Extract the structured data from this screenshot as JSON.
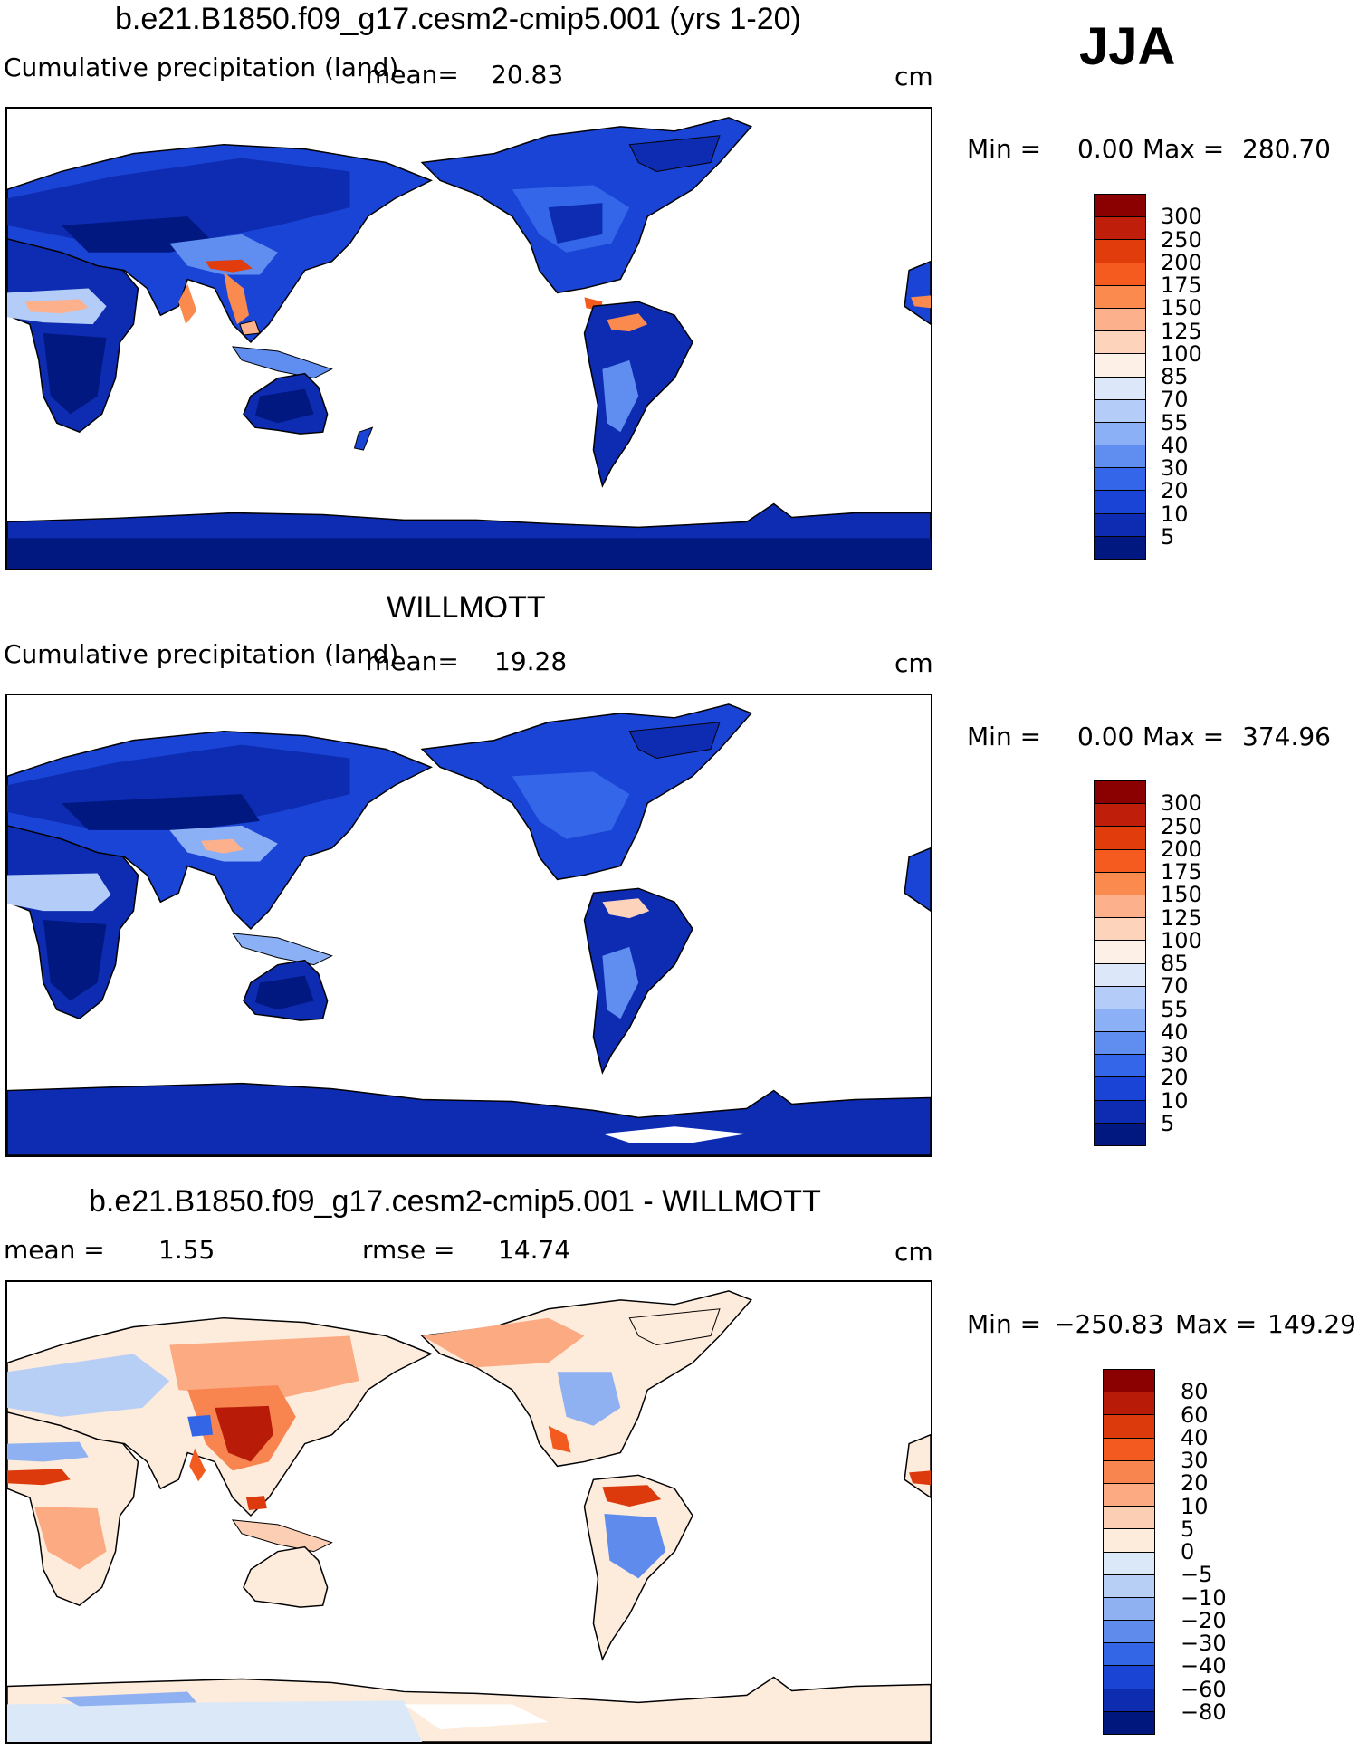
{
  "season": "JJA",
  "panels": [
    {
      "id": "model",
      "title": "b.e21.B1850.f09_g17.cesm2-cmip5.001 (yrs 1-20)",
      "variable": "Cumulative precipitation (land)",
      "mean_label": "mean=",
      "mean_value": "20.83",
      "units": "cm",
      "min_label": "Min =",
      "min_value": "0.00",
      "max_label": "Max =",
      "max_value": "280.70",
      "colorbar_labels": [
        "300",
        "250",
        "200",
        "175",
        "150",
        "125",
        "100",
        "85",
        "70",
        "55",
        "40",
        "30",
        "20",
        "10",
        "5"
      ],
      "colorbar_colors": [
        "#8b0000",
        "#be1e0a",
        "#e03c0c",
        "#f55a1e",
        "#fb8a4e",
        "#fdb08c",
        "#fdd3bc",
        "#fdf0e6",
        "#dce8fa",
        "#b4cdf8",
        "#8cb0f5",
        "#5f8df0",
        "#3366e8",
        "#1a44d6",
        "#0d2cb2",
        "#001880"
      ]
    },
    {
      "id": "obs",
      "title": "WILLMOTT",
      "variable": "Cumulative precipitation (land)",
      "mean_label": "mean=",
      "mean_value": "19.28",
      "units": "cm",
      "min_label": "Min =",
      "min_value": "0.00",
      "max_label": "Max =",
      "max_value": "374.96",
      "colorbar_labels": [
        "300",
        "250",
        "200",
        "175",
        "150",
        "125",
        "100",
        "85",
        "70",
        "55",
        "40",
        "30",
        "20",
        "10",
        "5"
      ],
      "colorbar_colors": [
        "#8b0000",
        "#be1e0a",
        "#e03c0c",
        "#f55a1e",
        "#fb8a4e",
        "#fdb08c",
        "#fdd3bc",
        "#fdf0e6",
        "#dce8fa",
        "#b4cdf8",
        "#8cb0f5",
        "#5f8df0",
        "#3366e8",
        "#1a44d6",
        "#0d2cb2",
        "#001880"
      ]
    },
    {
      "id": "diff",
      "title": "b.e21.B1850.f09_g17.cesm2-cmip5.001 - WILLMOTT",
      "mean_label": "mean =",
      "mean_value": "1.55",
      "rmse_label": "rmse =",
      "rmse_value": "14.74",
      "units": "cm",
      "min_label": "Min =",
      "min_value": "−250.83",
      "max_label": "Max =",
      "max_value": "149.29",
      "colorbar_labels": [
        "80",
        "60",
        "40",
        "30",
        "20",
        "10",
        "5",
        "0",
        "−5",
        "−10",
        "−20",
        "−30",
        "−40",
        "−60",
        "−80"
      ],
      "colorbar_colors": [
        "#8b0000",
        "#b81c08",
        "#dc3a0c",
        "#f25a20",
        "#f88450",
        "#fbaa82",
        "#fccfb4",
        "#fdebdc",
        "#dbe8f8",
        "#b8cff5",
        "#8fb1f1",
        "#5f8cec",
        "#3366e6",
        "#1a44d4",
        "#0d2cb0",
        "#00187e"
      ]
    }
  ]
}
